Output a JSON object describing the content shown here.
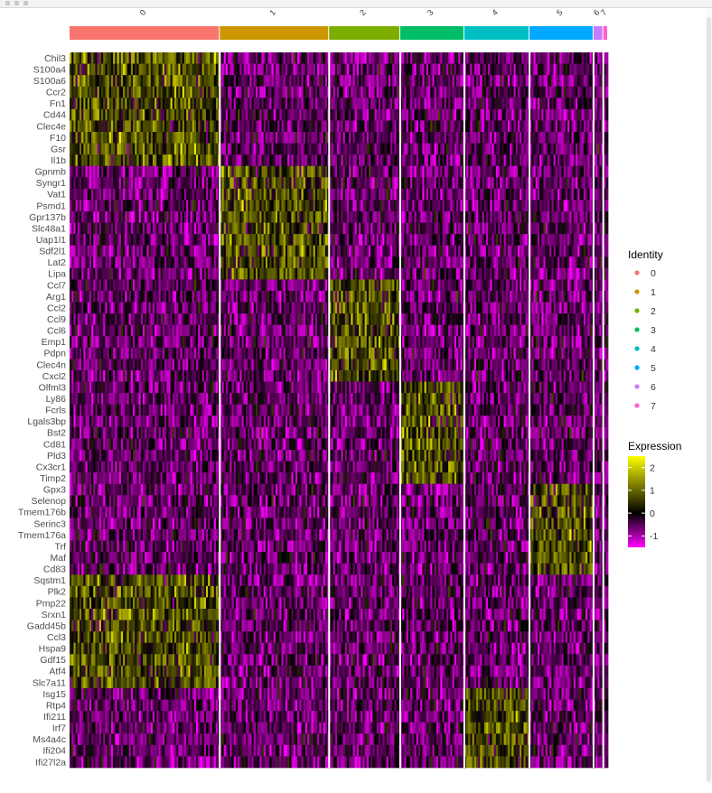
{
  "chart_data": {
    "type": "heatmap",
    "identity_legend": {
      "title": "Identity",
      "entries": [
        {
          "label": "0",
          "color": "#F8766D"
        },
        {
          "label": "1",
          "color": "#CD9600"
        },
        {
          "label": "2",
          "color": "#7CAE00"
        },
        {
          "label": "3",
          "color": "#00BE67"
        },
        {
          "label": "4",
          "color": "#00BFC4"
        },
        {
          "label": "5",
          "color": "#00A9FF"
        },
        {
          "label": "6",
          "color": "#C77CFF"
        },
        {
          "label": "7",
          "color": "#FF61CC"
        }
      ]
    },
    "clusters": [
      {
        "label": "0",
        "fraction": 0.279
      },
      {
        "label": "1",
        "fraction": 0.203
      },
      {
        "label": "2",
        "fraction": 0.132
      },
      {
        "label": "3",
        "fraction": 0.119
      },
      {
        "label": "4",
        "fraction": 0.121
      },
      {
        "label": "5",
        "fraction": 0.119
      },
      {
        "label": "6",
        "fraction": 0.018
      },
      {
        "label": "7",
        "fraction": 0.009
      }
    ],
    "genes": [
      "Chil3",
      "S100a4",
      "S100a6",
      "Ccr2",
      "Fn1",
      "Cd44",
      "Clec4e",
      "F10",
      "Gsr",
      "Il1b",
      "Gpnmb",
      "Syngr1",
      "Vat1",
      "Psmd1",
      "Gpr137b",
      "Slc48a1",
      "Uap1l1",
      "Sdf2l1",
      "Lat2",
      "Lipa",
      "Ccl7",
      "Arg1",
      "Ccl2",
      "Ccl9",
      "Ccl6",
      "Emp1",
      "Pdpn",
      "Clec4n",
      "Cxcl2",
      "Olfml3",
      "Ly86",
      "Fcrls",
      "Lgals3bp",
      "Bst2",
      "Cd81",
      "Pld3",
      "Cx3cr1",
      "Timp2",
      "Gpx3",
      "Selenop",
      "Tmem176b",
      "Serinc3",
      "Tmem176a",
      "Trf",
      "Maf",
      "Cd83",
      "Sqstm1",
      "Plk2",
      "Pmp22",
      "Srxn1",
      "Gadd45b",
      "Ccl3",
      "Hspa9",
      "Gdf15",
      "Atf4",
      "Slc7a11",
      "Isg15",
      "Rtp4",
      "Ifi211",
      "Irf7",
      "Ms4a4c",
      "Ifi204",
      "Ifi27l2a"
    ],
    "gene_blocks": [
      {
        "start": 0,
        "end": 9,
        "cluster": "0"
      },
      {
        "start": 10,
        "end": 19,
        "cluster": "1"
      },
      {
        "start": 20,
        "end": 28,
        "cluster": "2"
      },
      {
        "start": 29,
        "end": 37,
        "cluster": "3"
      },
      {
        "start": 38,
        "end": 45,
        "cluster": "5"
      },
      {
        "start": 46,
        "end": 55,
        "cluster": "0"
      },
      {
        "start": 56,
        "end": 62,
        "cluster": "4"
      }
    ],
    "expression_legend": {
      "title": "Expression",
      "ticks": [
        2,
        1,
        0,
        -1
      ],
      "range": [
        -1.5,
        2.5
      ],
      "colors": {
        "low": "#FF00FF",
        "mid": "#000000",
        "high": "#FFFF00"
      }
    }
  }
}
